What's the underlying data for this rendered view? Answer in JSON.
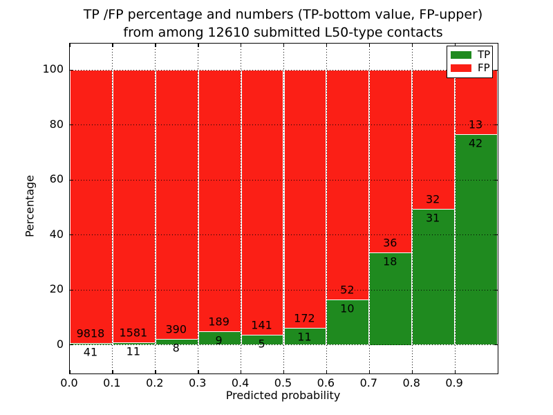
{
  "title": {
    "line1": "TP /FP percentage and numbers (TP-bottom value, FP-upper)",
    "line2": "from among 12610 submitted L50-type contacts"
  },
  "x_axis": {
    "label": "Predicted probability",
    "tick_labels": [
      "0.0",
      "0.1",
      "0.2",
      "0.3",
      "0.4",
      "0.5",
      "0.6",
      "0.7",
      "0.8",
      "0.9"
    ]
  },
  "y_axis": {
    "label": "Percentage",
    "tick_values": [
      0,
      20,
      40,
      60,
      80,
      100
    ]
  },
  "legend": {
    "position": "upper right",
    "entries": [
      {
        "label": "TP",
        "color": "#1f8a1f"
      },
      {
        "label": "FP",
        "color": "#fb1f16"
      }
    ]
  },
  "chart_data": {
    "type": "bar",
    "stacked": true,
    "normalized": "each bar stacks to 100%",
    "title": "TP /FP percentage and numbers (TP-bottom value, FP-upper) from among 12610 submitted L50-type contacts",
    "xlabel": "Predicted probability",
    "ylabel": "Percentage",
    "bin_starts": [
      0.0,
      0.1,
      0.2,
      0.3,
      0.4,
      0.5,
      0.6,
      0.7,
      0.8,
      0.9
    ],
    "bin_width": 0.1,
    "series": [
      {
        "name": "TP",
        "color": "#1f8a1f",
        "counts": [
          41,
          11,
          8,
          9,
          5,
          11,
          10,
          18,
          31,
          42
        ]
      },
      {
        "name": "FP",
        "color": "#fb1f16",
        "counts": [
          9818,
          1581,
          390,
          189,
          141,
          172,
          52,
          36,
          32,
          13
        ]
      }
    ],
    "tp_percent": [
      0.42,
      0.69,
      2.01,
      4.55,
      3.42,
      6.01,
      16.13,
      33.33,
      49.21,
      76.36
    ],
    "total_contacts": 12610,
    "xlim": [
      0.0,
      1.0
    ],
    "ylim": [
      -10.4,
      109.6
    ],
    "yticks": [
      0,
      20,
      40,
      60,
      80,
      100
    ],
    "grid": "dotted black, horizontal at yticks and vertical at xticks",
    "bar_edge_color": "#ffffff",
    "legend_position": "upper right",
    "annotation_rule": "FP count printed just above TP/FP boundary, TP count just below"
  }
}
